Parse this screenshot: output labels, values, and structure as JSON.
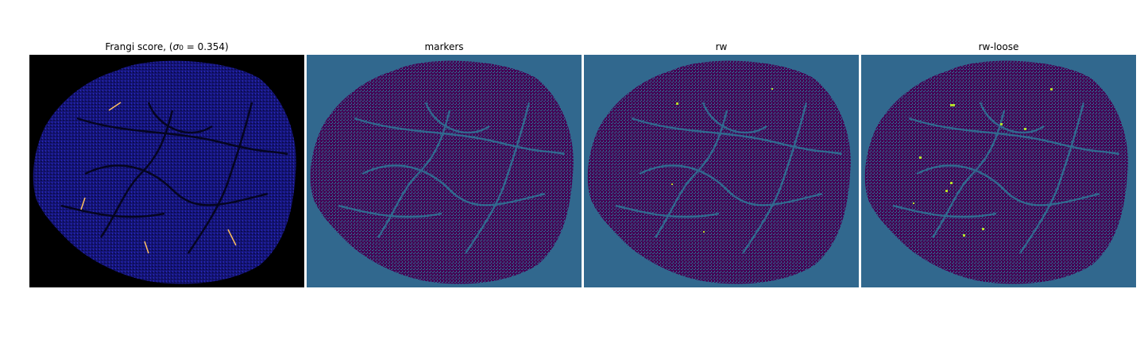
{
  "panels": [
    {
      "id": "frangi",
      "title_prefix": "Frangi score, (",
      "title_sigma": "σ",
      "title_sub": "0",
      "title_suffix": " = 0.354)",
      "background": "#000000",
      "tissue": "#1a1a8c",
      "vessel": "#3a0a5a",
      "highlight": "#ffc060"
    },
    {
      "id": "markers",
      "title": "markers",
      "background": "#31688e",
      "tissue": "#440154",
      "vessel": "#31688e"
    },
    {
      "id": "rw",
      "title": "rw",
      "background": "#31688e",
      "tissue": "#440154",
      "vessel": "#31688e",
      "highlight": "#b5de2b"
    },
    {
      "id": "rw-loose",
      "title": "rw-loose",
      "background": "#31688e",
      "tissue": "#440154",
      "vessel": "#31688e",
      "highlight": "#b5de2b"
    }
  ]
}
